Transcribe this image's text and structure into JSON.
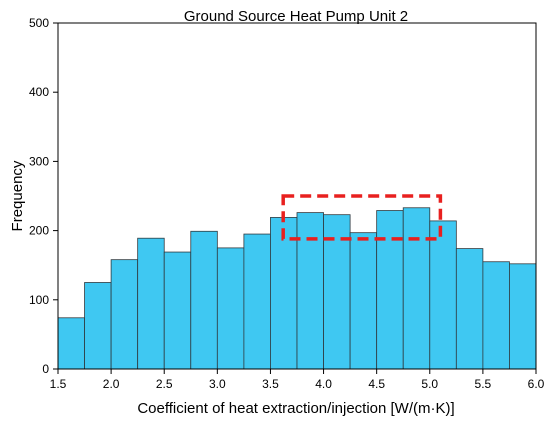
{
  "chart_data": {
    "type": "bar",
    "title": "Ground Source Heat Pump Unit 2",
    "xlabel": "Coefficient of heat extraction/injection [W/(m·K)]",
    "ylabel": "Frequency",
    "xlim": [
      1.5,
      6.0
    ],
    "ylim": [
      0,
      500
    ],
    "xticks": [
      "1.5",
      "2.0",
      "2.5",
      "3.0",
      "3.5",
      "4.0",
      "4.5",
      "5.0",
      "5.5",
      "6.0"
    ],
    "yticks": [
      "0",
      "100",
      "200",
      "300",
      "400",
      "500"
    ],
    "bin_width": 0.25,
    "bins": [
      {
        "x0": 1.5,
        "x1": 1.75,
        "value": 74
      },
      {
        "x0": 1.75,
        "x1": 2.0,
        "value": 125
      },
      {
        "x0": 2.0,
        "x1": 2.25,
        "value": 158
      },
      {
        "x0": 2.25,
        "x1": 2.5,
        "value": 189
      },
      {
        "x0": 2.5,
        "x1": 2.75,
        "value": 169
      },
      {
        "x0": 2.75,
        "x1": 3.0,
        "value": 199
      },
      {
        "x0": 3.0,
        "x1": 3.25,
        "value": 175
      },
      {
        "x0": 3.25,
        "x1": 3.5,
        "value": 195
      },
      {
        "x0": 3.5,
        "x1": 3.75,
        "value": 219
      },
      {
        "x0": 3.75,
        "x1": 4.0,
        "value": 226
      },
      {
        "x0": 4.0,
        "x1": 4.25,
        "value": 223
      },
      {
        "x0": 4.25,
        "x1": 4.5,
        "value": 197
      },
      {
        "x0": 4.5,
        "x1": 4.75,
        "value": 229
      },
      {
        "x0": 4.75,
        "x1": 5.0,
        "value": 233
      },
      {
        "x0": 5.0,
        "x1": 5.25,
        "value": 214
      },
      {
        "x0": 5.25,
        "x1": 5.5,
        "value": 174
      },
      {
        "x0": 5.5,
        "x1": 5.75,
        "value": 155
      },
      {
        "x0": 5.75,
        "x1": 6.0,
        "value": 152
      }
    ],
    "highlight_box": {
      "x0": 3.62,
      "x1": 5.1,
      "y0": 188,
      "y1": 250
    },
    "bar_color": "#3fc8f2",
    "bar_edge_color": "#2f3a40",
    "highlight_color": "#e8201f",
    "grid": false,
    "legend": "none"
  }
}
